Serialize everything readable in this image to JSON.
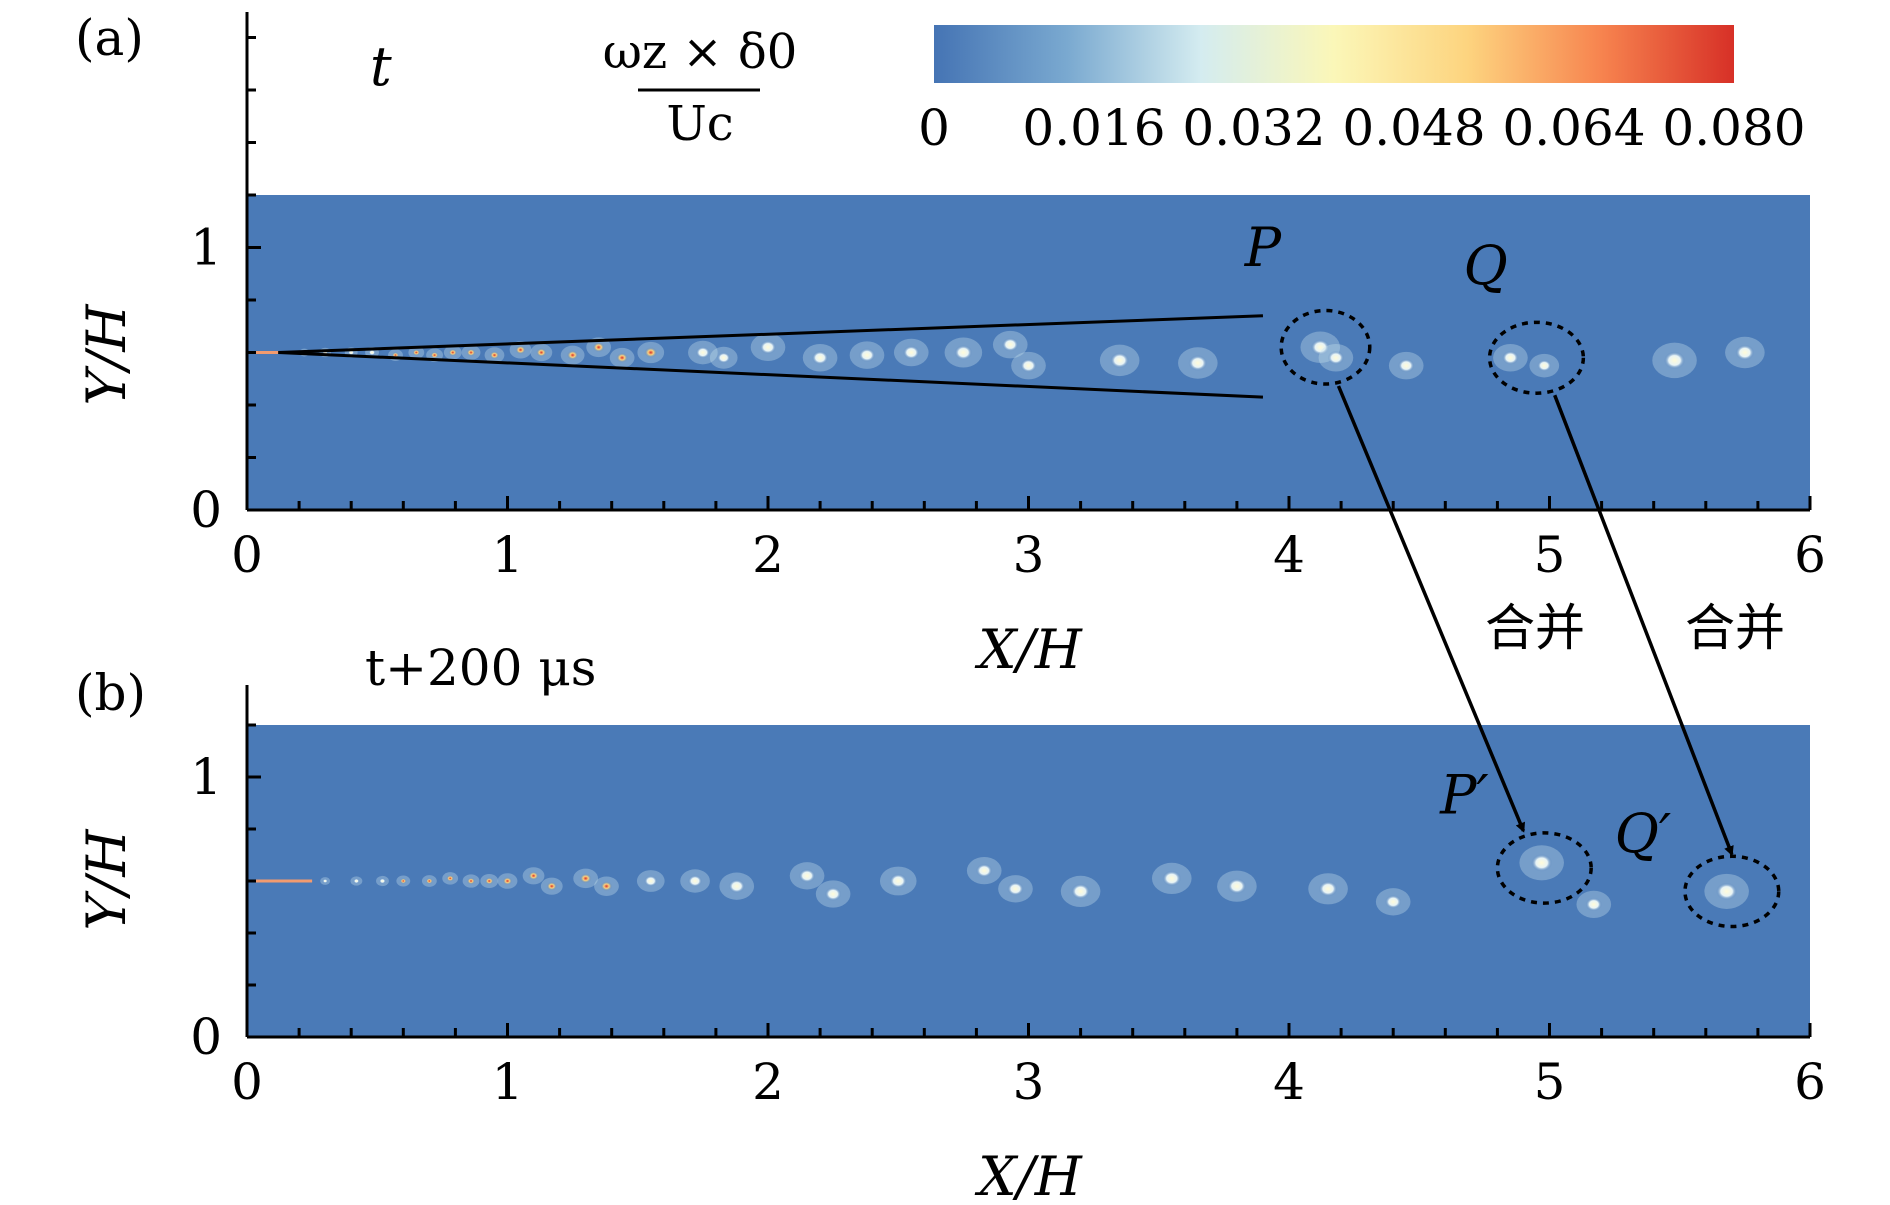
{
  "chart_data": [
    {
      "type": "heatmap",
      "panel_label": "(a)",
      "time_label": "t",
      "xlabel": "X/H",
      "ylabel": "Y/H",
      "xlim": [
        0,
        6
      ],
      "ylim": [
        0,
        1.2
      ],
      "x_ticks": [
        "0",
        "1",
        "2",
        "3",
        "4",
        "5",
        "6"
      ],
      "y_ticks": [
        "0",
        "1"
      ],
      "background_color": "#4a7ab7",
      "shear_layer": {
        "origin": [
          0.12,
          0.6
        ],
        "upper_end": [
          3.9,
          0.74
        ],
        "lower_end": [
          3.9,
          0.43
        ]
      },
      "vortices": [
        [
          0.22,
          0.6,
          0.01,
          0.4
        ],
        [
          0.3,
          0.6,
          0.012,
          0.5
        ],
        [
          0.4,
          0.6,
          0.013,
          0.6
        ],
        [
          0.48,
          0.6,
          0.014,
          0.7
        ],
        [
          0.57,
          0.59,
          0.015,
          0.8
        ],
        [
          0.65,
          0.6,
          0.016,
          0.85
        ],
        [
          0.72,
          0.59,
          0.017,
          0.9
        ],
        [
          0.79,
          0.6,
          0.018,
          0.9
        ],
        [
          0.86,
          0.6,
          0.019,
          0.9
        ],
        [
          0.95,
          0.59,
          0.02,
          0.85
        ],
        [
          1.05,
          0.61,
          0.022,
          0.9
        ],
        [
          1.13,
          0.6,
          0.022,
          0.85
        ],
        [
          1.25,
          0.59,
          0.024,
          0.85
        ],
        [
          1.35,
          0.62,
          0.025,
          0.8
        ],
        [
          1.44,
          0.58,
          0.025,
          0.8
        ],
        [
          1.55,
          0.6,
          0.027,
          0.8
        ],
        [
          1.75,
          0.6,
          0.03,
          0.6
        ],
        [
          1.83,
          0.58,
          0.028,
          0.55
        ],
        [
          2.0,
          0.62,
          0.035,
          0.55
        ],
        [
          2.2,
          0.58,
          0.035,
          0.5
        ],
        [
          2.38,
          0.59,
          0.035,
          0.55
        ],
        [
          2.55,
          0.6,
          0.035,
          0.5
        ],
        [
          2.75,
          0.6,
          0.038,
          0.5
        ],
        [
          2.93,
          0.63,
          0.035,
          0.5
        ],
        [
          3.0,
          0.55,
          0.035,
          0.5
        ],
        [
          3.35,
          0.57,
          0.04,
          0.45
        ],
        [
          3.65,
          0.56,
          0.04,
          0.5
        ],
        [
          4.12,
          0.62,
          0.04,
          0.5
        ],
        [
          4.18,
          0.58,
          0.035,
          0.45
        ],
        [
          4.45,
          0.55,
          0.035,
          0.4
        ],
        [
          4.85,
          0.58,
          0.035,
          0.45
        ],
        [
          4.98,
          0.55,
          0.03,
          0.4
        ],
        [
          5.48,
          0.57,
          0.045,
          0.35
        ],
        [
          5.75,
          0.6,
          0.04,
          0.3
        ]
      ],
      "annotations": [
        {
          "text": "P",
          "x": 3.83,
          "y": 0.93
        },
        {
          "text": "Q",
          "x": 4.67,
          "y": 0.86
        }
      ],
      "circles": [
        {
          "name": "P",
          "cx": 4.14,
          "cy": 0.62,
          "rx": 0.17,
          "ry": 0.14
        },
        {
          "name": "Q",
          "cx": 4.95,
          "cy": 0.58,
          "rx": 0.18,
          "ry": 0.135
        }
      ],
      "merge_labels": [
        "合并",
        "合并"
      ],
      "colorbar": {
        "label_numerator": "ωz × δ0",
        "label_denominator": "Uc",
        "ticks": [
          "0",
          "0.016",
          "0.032",
          "0.048",
          "0.064",
          "0.080"
        ],
        "range": [
          0,
          0.08
        ],
        "colors": [
          "#4574b4",
          "#7aa9d0",
          "#d4ecf0",
          "#fbf7b8",
          "#fdd47f",
          "#f7844f",
          "#d73027"
        ]
      }
    },
    {
      "type": "heatmap",
      "panel_label": "(b)",
      "time_label": "t+200 μs",
      "xlabel": "X/H",
      "ylabel": "Y/H",
      "xlim": [
        0,
        6
      ],
      "ylim": [
        0,
        1.2
      ],
      "x_ticks": [
        "0",
        "1",
        "2",
        "3",
        "4",
        "5",
        "6"
      ],
      "y_ticks": [
        "0",
        "1"
      ],
      "background_color": "#4a7ab7",
      "vortices": [
        [
          0.3,
          0.6,
          0.01,
          0.5
        ],
        [
          0.42,
          0.6,
          0.012,
          0.6
        ],
        [
          0.52,
          0.6,
          0.013,
          0.7
        ],
        [
          0.6,
          0.6,
          0.014,
          0.8
        ],
        [
          0.7,
          0.6,
          0.015,
          0.85
        ],
        [
          0.78,
          0.61,
          0.016,
          0.9
        ],
        [
          0.86,
          0.6,
          0.017,
          0.9
        ],
        [
          0.93,
          0.6,
          0.018,
          0.9
        ],
        [
          1.0,
          0.6,
          0.02,
          0.9
        ],
        [
          1.1,
          0.62,
          0.022,
          0.85
        ],
        [
          1.17,
          0.58,
          0.022,
          0.85
        ],
        [
          1.3,
          0.61,
          0.025,
          0.8
        ],
        [
          1.38,
          0.58,
          0.025,
          0.8
        ],
        [
          1.55,
          0.6,
          0.028,
          0.75
        ],
        [
          1.72,
          0.6,
          0.03,
          0.7
        ],
        [
          1.88,
          0.58,
          0.035,
          0.55
        ],
        [
          2.15,
          0.62,
          0.035,
          0.5
        ],
        [
          2.25,
          0.55,
          0.035,
          0.5
        ],
        [
          2.5,
          0.6,
          0.037,
          0.5
        ],
        [
          2.83,
          0.64,
          0.035,
          0.5
        ],
        [
          2.95,
          0.57,
          0.035,
          0.5
        ],
        [
          3.2,
          0.56,
          0.04,
          0.45
        ],
        [
          3.55,
          0.61,
          0.04,
          0.45
        ],
        [
          3.8,
          0.58,
          0.04,
          0.4
        ],
        [
          4.15,
          0.57,
          0.04,
          0.45
        ],
        [
          4.4,
          0.52,
          0.035,
          0.45
        ],
        [
          4.97,
          0.67,
          0.045,
          0.45
        ],
        [
          5.17,
          0.51,
          0.035,
          0.4
        ],
        [
          5.68,
          0.56,
          0.045,
          0.45
        ]
      ],
      "annotations": [
        {
          "text": "P′",
          "x": 4.58,
          "y": 0.86
        },
        {
          "text": "Q′",
          "x": 5.25,
          "y": 0.71
        }
      ],
      "circles": [
        {
          "name": "P'",
          "cx": 4.98,
          "cy": 0.65,
          "rx": 0.18,
          "ry": 0.135
        },
        {
          "name": "Q'",
          "cx": 5.7,
          "cy": 0.56,
          "rx": 0.18,
          "ry": 0.135
        }
      ]
    }
  ]
}
